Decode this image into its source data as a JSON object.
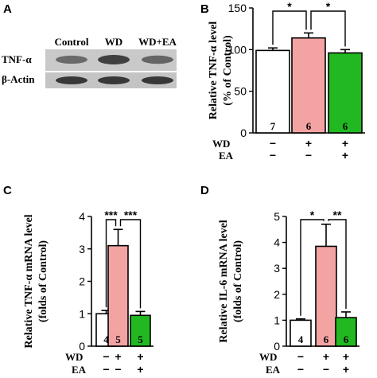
{
  "panel_letters": {
    "a": "A",
    "b": "B",
    "c": "C",
    "d": "D"
  },
  "blot": {
    "lanes": [
      "Control",
      "WD",
      "WD+EA"
    ],
    "rows": [
      {
        "label": "TNF-α",
        "intensities": [
          0.55,
          0.8,
          0.58
        ]
      },
      {
        "label": "β-Actin",
        "intensities": [
          0.85,
          0.85,
          0.85
        ]
      }
    ]
  },
  "treatment_rows": {
    "wd_label": "WD",
    "ea_label": "EA",
    "wd": [
      "−",
      "+",
      "+"
    ],
    "ea": [
      "−",
      "−",
      "+"
    ]
  },
  "colors": {
    "control": "#ffffff",
    "wd": "#f4a3a3",
    "wd_ea": "#22b822",
    "axis": "#000000"
  },
  "chart_data": [
    {
      "panel": "B",
      "type": "bar",
      "ylabel_lines": [
        "Relative TNF-α level",
        "(% of Control)"
      ],
      "ylim": [
        0,
        150
      ],
      "yticks": [
        0,
        50,
        100,
        150
      ],
      "categories": [
        "Control",
        "WD",
        "WD+EA"
      ],
      "values": [
        99,
        114,
        96
      ],
      "errors": [
        3,
        6,
        4
      ],
      "n_labels": [
        "7",
        "6",
        "6"
      ],
      "significance": [
        {
          "from": 0,
          "to": 1,
          "label": "*",
          "level": 1
        },
        {
          "from": 1,
          "to": 2,
          "label": "*",
          "level": 1
        }
      ]
    },
    {
      "panel": "C",
      "type": "bar",
      "ylabel_lines": [
        "Relative TNF-α mRNA level",
        "(folds of Control)"
      ],
      "ylim": [
        0,
        4
      ],
      "yticks": [
        0,
        1,
        2,
        3,
        4
      ],
      "categories": [
        "Control",
        "WD",
        "WD+EA"
      ],
      "values": [
        1.0,
        3.1,
        0.95
      ],
      "errors": [
        0.1,
        0.5,
        0.12
      ],
      "n_labels": [
        "4",
        "5",
        "5"
      ],
      "significance": [
        {
          "from": 0,
          "to": 1,
          "label": "***",
          "level": 1
        },
        {
          "from": 1,
          "to": 2,
          "label": "***",
          "level": 1
        }
      ]
    },
    {
      "panel": "D",
      "type": "bar",
      "ylabel_lines": [
        "Relative IL-6 mRNA level",
        "(folds of Control)"
      ],
      "ylim": [
        0,
        5
      ],
      "yticks": [
        0,
        1,
        2,
        3,
        4,
        5
      ],
      "categories": [
        "Control",
        "WD",
        "WD+EA"
      ],
      "values": [
        1.0,
        3.85,
        1.1
      ],
      "errors": [
        0.05,
        0.85,
        0.22
      ],
      "n_labels": [
        "4",
        "6",
        "6"
      ],
      "significance": [
        {
          "from": 0,
          "to": 1,
          "label": "*",
          "level": 1
        },
        {
          "from": 1,
          "to": 2,
          "label": "**",
          "level": 1
        }
      ]
    }
  ]
}
